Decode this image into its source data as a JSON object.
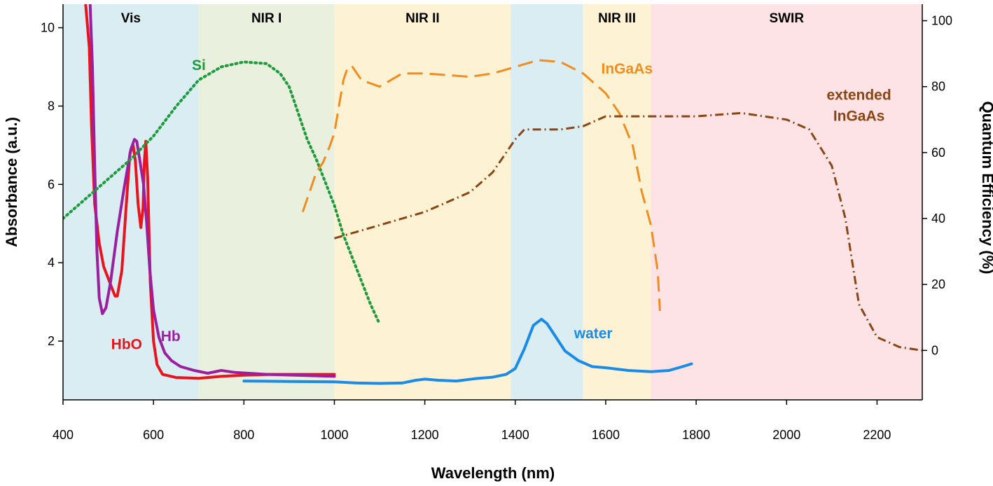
{
  "chart_data": {
    "type": "line",
    "title": "",
    "xlabel": "Wavelength (nm)",
    "ylabel_left": "Absorbance (a.u.)",
    "ylabel_right": "Quantum Efficiency (%)",
    "xlim": [
      400,
      2300
    ],
    "ylim_left": [
      0.5,
      10.6
    ],
    "ylim_right": [
      -15,
      105
    ],
    "x_ticks": [
      400,
      600,
      800,
      1000,
      1200,
      1400,
      1600,
      1800,
      2000,
      2200
    ],
    "y_ticks_left": [
      2,
      4,
      6,
      8,
      10
    ],
    "y_ticks_right": [
      0,
      20,
      40,
      60,
      80,
      100
    ],
    "grid": false,
    "legend": "none",
    "bands": [
      {
        "name": "Vis",
        "x0": 400,
        "x1": 700,
        "color": "#d9edf3"
      },
      {
        "name": "NIR I",
        "x0": 700,
        "x1": 1000,
        "color": "#e9f0dd"
      },
      {
        "name": "NIR II",
        "x0": 1000,
        "x1": 1390,
        "color": "#fdf3d4"
      },
      {
        "name": "",
        "x0": 1390,
        "x1": 1550,
        "color": "#d9edf3"
      },
      {
        "name": "NIR III",
        "x0": 1550,
        "x1": 1700,
        "color": "#fdf3d4"
      },
      {
        "name": "SWIR",
        "x0": 1700,
        "x1": 2300,
        "color": "#fde3e6"
      }
    ],
    "series": [
      {
        "name": "HbO",
        "axis": "left",
        "color": "#e8141e",
        "dash": "solid",
        "width": 4,
        "label_at": [
          575,
          1.8
        ],
        "label_anchor": "end",
        "points": [
          [
            450,
            10.6
          ],
          [
            458,
            9.5
          ],
          [
            463,
            7.5
          ],
          [
            470,
            5.5
          ],
          [
            480,
            4.5
          ],
          [
            490,
            3.9
          ],
          [
            500,
            3.6
          ],
          [
            510,
            3.3
          ],
          [
            515,
            3.15
          ],
          [
            520,
            3.15
          ],
          [
            530,
            3.8
          ],
          [
            540,
            5.5
          ],
          [
            548,
            6.8
          ],
          [
            555,
            7.0
          ],
          [
            560,
            6.6
          ],
          [
            566,
            5.5
          ],
          [
            572,
            4.9
          ],
          [
            577,
            5.4
          ],
          [
            580,
            6.6
          ],
          [
            583,
            7.1
          ],
          [
            587,
            6.2
          ],
          [
            593,
            3.5
          ],
          [
            600,
            2.0
          ],
          [
            608,
            1.4
          ],
          [
            620,
            1.15
          ],
          [
            650,
            1.07
          ],
          [
            700,
            1.05
          ],
          [
            750,
            1.1
          ],
          [
            800,
            1.13
          ],
          [
            860,
            1.15
          ],
          [
            950,
            1.15
          ],
          [
            1000,
            1.15
          ]
        ]
      },
      {
        "name": "Hb",
        "axis": "left",
        "color": "#9b1fa0",
        "dash": "solid",
        "width": 4,
        "label_at": [
          638,
          2.0
        ],
        "label_anchor": "middle",
        "points": [
          [
            460,
            10.6
          ],
          [
            465,
            9.0
          ],
          [
            470,
            6.5
          ],
          [
            475,
            4.3
          ],
          [
            480,
            3.1
          ],
          [
            487,
            2.7
          ],
          [
            495,
            2.85
          ],
          [
            505,
            3.5
          ],
          [
            520,
            4.8
          ],
          [
            535,
            5.9
          ],
          [
            550,
            6.9
          ],
          [
            558,
            7.15
          ],
          [
            563,
            7.1
          ],
          [
            570,
            6.6
          ],
          [
            578,
            6.0
          ],
          [
            585,
            5.0
          ],
          [
            592,
            3.8
          ],
          [
            600,
            2.8
          ],
          [
            612,
            2.1
          ],
          [
            625,
            1.7
          ],
          [
            640,
            1.5
          ],
          [
            660,
            1.35
          ],
          [
            690,
            1.25
          ],
          [
            720,
            1.18
          ],
          [
            750,
            1.25
          ],
          [
            780,
            1.2
          ],
          [
            850,
            1.15
          ],
          [
            1000,
            1.1
          ]
        ]
      },
      {
        "name": "water",
        "axis": "left",
        "color": "#1a8be6",
        "dash": "solid",
        "width": 4,
        "label_at": [
          1530,
          2.07
        ],
        "label_anchor": "start",
        "points": [
          [
            800,
            0.98
          ],
          [
            900,
            0.97
          ],
          [
            1000,
            0.96
          ],
          [
            1050,
            0.93
          ],
          [
            1100,
            0.92
          ],
          [
            1150,
            0.93
          ],
          [
            1180,
            1.0
          ],
          [
            1200,
            1.03
          ],
          [
            1230,
            1.0
          ],
          [
            1270,
            0.98
          ],
          [
            1310,
            1.04
          ],
          [
            1350,
            1.08
          ],
          [
            1380,
            1.15
          ],
          [
            1400,
            1.3
          ],
          [
            1420,
            1.8
          ],
          [
            1440,
            2.4
          ],
          [
            1458,
            2.56
          ],
          [
            1470,
            2.45
          ],
          [
            1490,
            2.1
          ],
          [
            1510,
            1.75
          ],
          [
            1540,
            1.5
          ],
          [
            1570,
            1.35
          ],
          [
            1600,
            1.32
          ],
          [
            1650,
            1.25
          ],
          [
            1700,
            1.22
          ],
          [
            1740,
            1.25
          ],
          [
            1770,
            1.35
          ],
          [
            1790,
            1.42
          ]
        ]
      },
      {
        "name": "Si",
        "axis": "right",
        "color": "#1e9b3c",
        "dash": "2 5",
        "width": 4,
        "label_at": [
          685,
          85
        ],
        "label_anchor": "start",
        "points": [
          [
            400,
            40
          ],
          [
            450,
            46
          ],
          [
            500,
            52
          ],
          [
            550,
            58
          ],
          [
            600,
            65
          ],
          [
            650,
            74
          ],
          [
            700,
            82
          ],
          [
            750,
            86
          ],
          [
            800,
            87.5
          ],
          [
            850,
            87
          ],
          [
            880,
            84
          ],
          [
            900,
            80
          ],
          [
            910,
            76
          ],
          [
            925,
            70
          ],
          [
            940,
            64
          ],
          [
            960,
            58
          ],
          [
            980,
            51
          ],
          [
            1000,
            44
          ],
          [
            1020,
            35
          ],
          [
            1040,
            28
          ],
          [
            1060,
            21
          ],
          [
            1080,
            14
          ],
          [
            1100,
            8
          ]
        ]
      },
      {
        "name": "InGaAs",
        "axis": "right",
        "color": "#f28c1e",
        "dash": "22 10",
        "width": 3,
        "label_at": [
          1590,
          84
        ],
        "label_anchor": "start",
        "points": [
          [
            930,
            42
          ],
          [
            945,
            48
          ],
          [
            960,
            54
          ],
          [
            975,
            57
          ],
          [
            990,
            62
          ],
          [
            1000,
            66
          ],
          [
            1010,
            74
          ],
          [
            1020,
            82
          ],
          [
            1030,
            86
          ],
          [
            1040,
            86
          ],
          [
            1060,
            82
          ],
          [
            1100,
            80
          ],
          [
            1150,
            84
          ],
          [
            1200,
            84
          ],
          [
            1300,
            83
          ],
          [
            1350,
            84
          ],
          [
            1400,
            86
          ],
          [
            1450,
            88
          ],
          [
            1500,
            87.5
          ],
          [
            1550,
            84
          ],
          [
            1600,
            78
          ],
          [
            1630,
            72
          ],
          [
            1660,
            62
          ],
          [
            1680,
            48
          ],
          [
            1700,
            38
          ],
          [
            1715,
            24
          ],
          [
            1720,
            12
          ]
        ]
      },
      {
        "name": "extended InGaAs",
        "axis": "right",
        "color": "#8b4513",
        "dash": "12 5 2 5",
        "width": 3,
        "label_at": [
          2160,
          76
        ],
        "label_anchor": "middle",
        "points": [
          [
            1000,
            34
          ],
          [
            1100,
            38
          ],
          [
            1200,
            42
          ],
          [
            1300,
            48
          ],
          [
            1350,
            54
          ],
          [
            1400,
            64
          ],
          [
            1420,
            67
          ],
          [
            1450,
            67
          ],
          [
            1500,
            67
          ],
          [
            1550,
            68
          ],
          [
            1600,
            71
          ],
          [
            1650,
            71
          ],
          [
            1700,
            71
          ],
          [
            1800,
            71
          ],
          [
            1900,
            72
          ],
          [
            1950,
            71
          ],
          [
            2000,
            70
          ],
          [
            2050,
            67
          ],
          [
            2100,
            56
          ],
          [
            2130,
            40
          ],
          [
            2160,
            14
          ],
          [
            2200,
            4
          ],
          [
            2250,
            1
          ],
          [
            2300,
            0
          ]
        ]
      }
    ]
  }
}
